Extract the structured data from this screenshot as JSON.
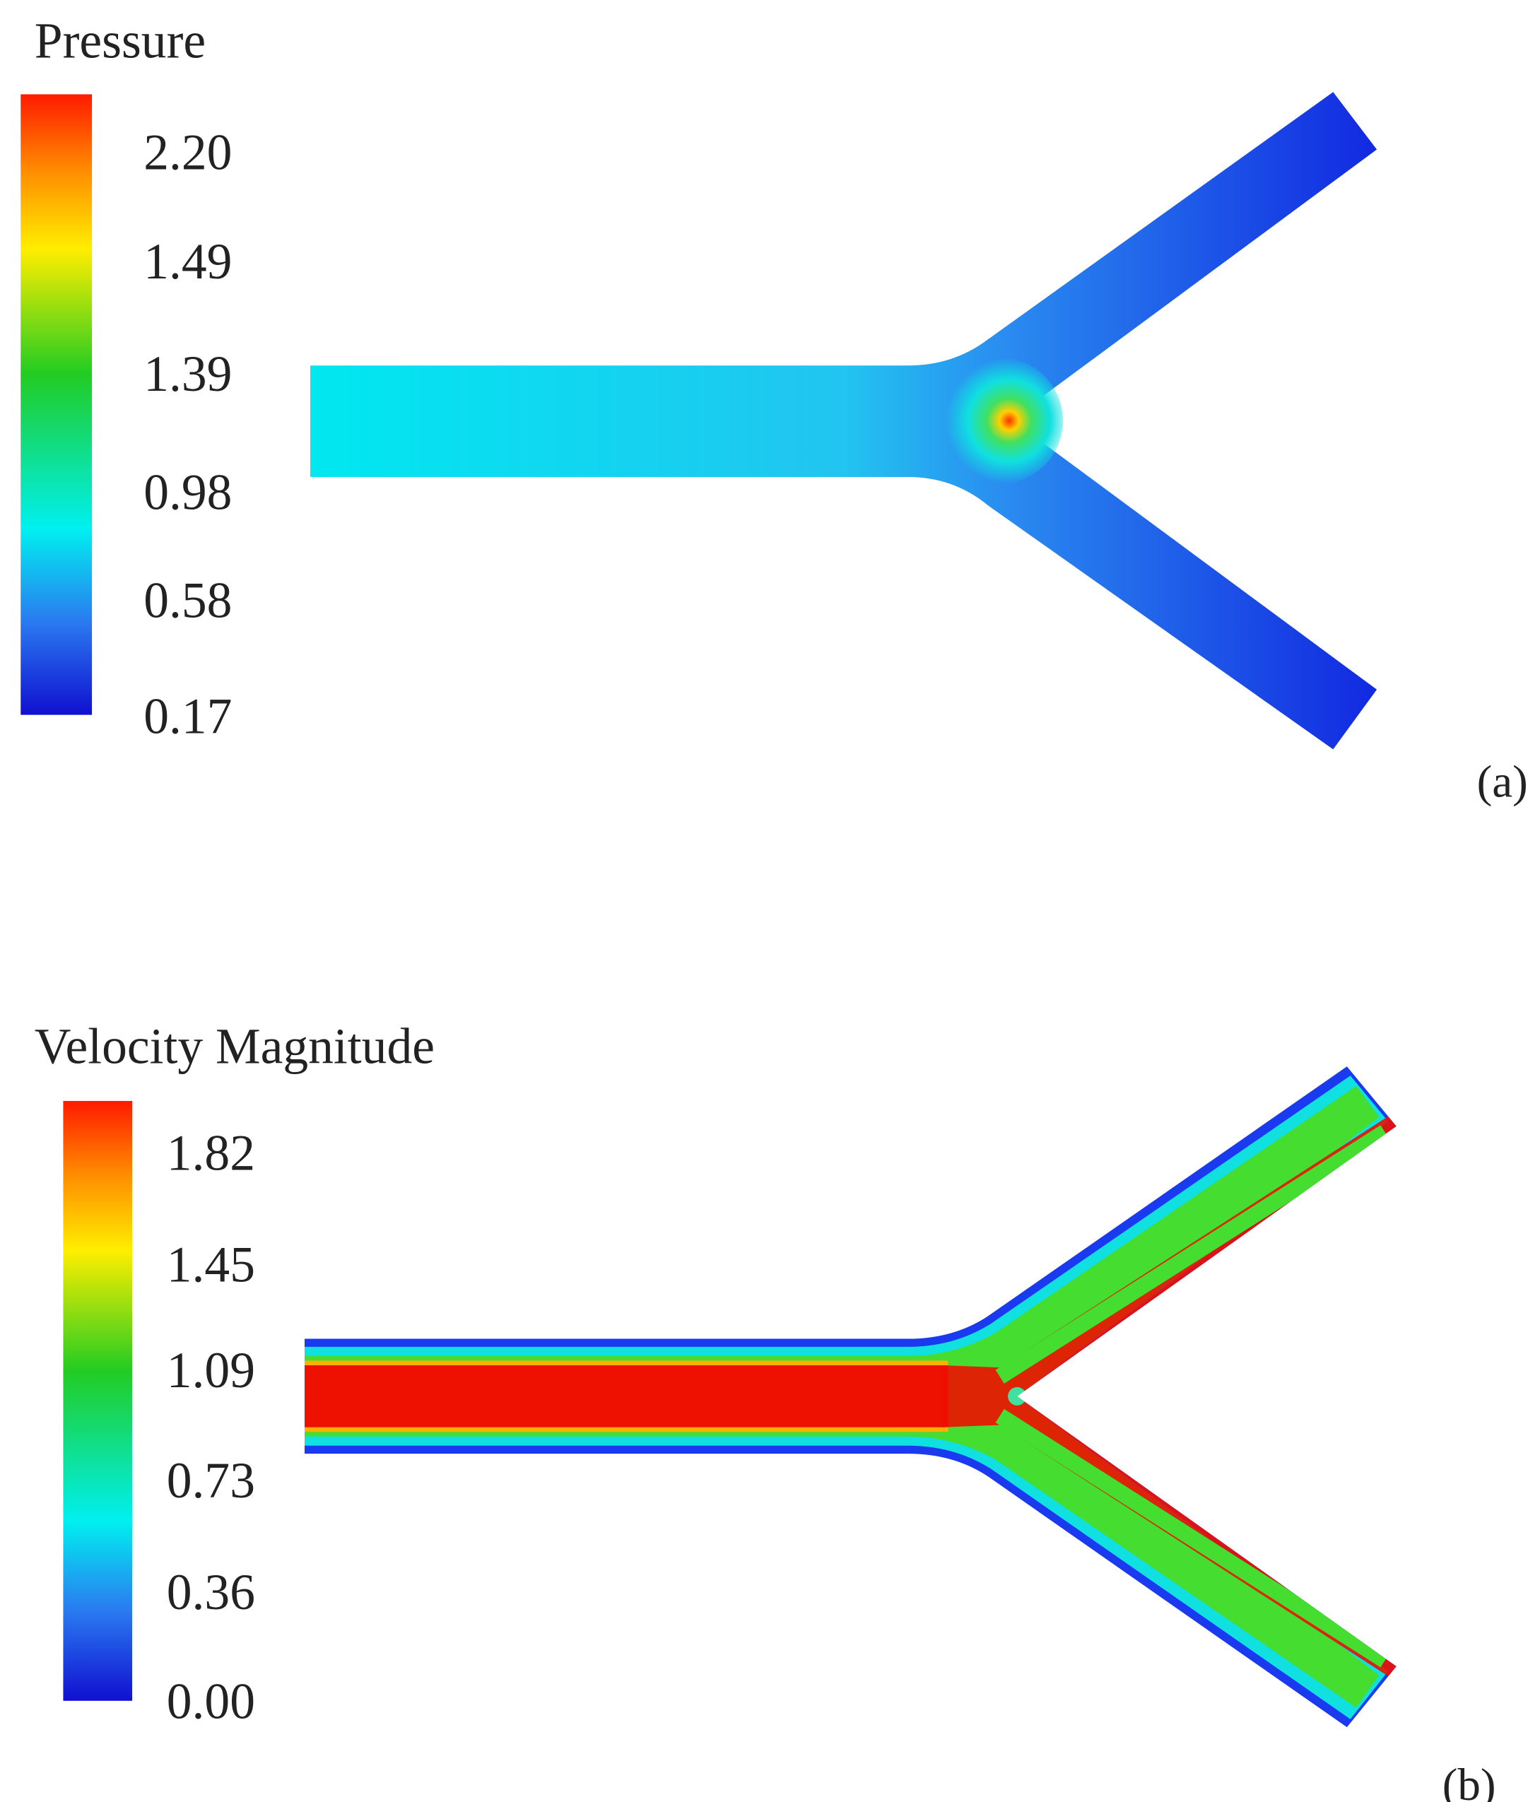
{
  "panels": [
    {
      "legend_title": "Pressure",
      "ticks": [
        "2.20",
        "1.49",
        "1.39",
        "0.98",
        "0.58",
        "0.17"
      ],
      "label": "(a)"
    },
    {
      "legend_title": "Velocity Magnitude",
      "ticks": [
        "1.82",
        "1.45",
        "1.09",
        "0.73",
        "0.36",
        "0.00"
      ],
      "label": "(b)"
    }
  ]
}
